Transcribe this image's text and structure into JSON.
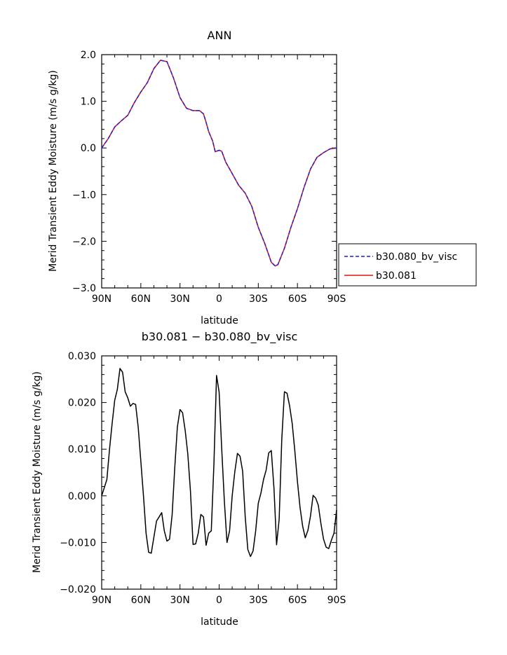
{
  "chart_data": [
    {
      "type": "line",
      "title": "ANN",
      "xlabel": "latitude",
      "ylabel": "Merid Transient Eddy Moisture (m/s g/kg)",
      "xlim": [
        90,
        -90
      ],
      "ylim": [
        -3.0,
        2.0
      ],
      "x_ticks": [
        90,
        60,
        30,
        0,
        -30,
        -60,
        -90
      ],
      "x_tick_labels": [
        "90N",
        "60N",
        "30N",
        "0",
        "30S",
        "60S",
        "90S"
      ],
      "y_ticks": [
        -3.0,
        -2.0,
        -1.0,
        0.0,
        1.0,
        2.0
      ],
      "y_tick_labels": [
        "−3.0",
        "−2.0",
        "−1.0",
        "0.0",
        "1.0",
        "2.0"
      ],
      "legend_position": "right",
      "series": [
        {
          "name": "b30.080_bv_visc",
          "color": "#1f1fcf",
          "style": "dashed",
          "x": [
            90,
            85,
            80,
            75,
            70,
            65,
            60,
            55,
            50,
            45,
            40,
            35,
            30,
            25,
            20,
            15,
            12,
            10,
            8,
            5,
            3,
            0,
            -2,
            -5,
            -10,
            -15,
            -20,
            -25,
            -30,
            -35,
            -40,
            -43,
            -45,
            -50,
            -55,
            -60,
            -65,
            -70,
            -75,
            -80,
            -85,
            -90
          ],
          "y": [
            0.0,
            0.2,
            0.45,
            0.58,
            0.7,
            0.97,
            1.2,
            1.4,
            1.7,
            1.88,
            1.85,
            1.5,
            1.08,
            0.85,
            0.8,
            0.8,
            0.73,
            0.55,
            0.35,
            0.15,
            -0.08,
            -0.05,
            -0.07,
            -0.3,
            -0.55,
            -0.8,
            -0.97,
            -1.25,
            -1.7,
            -2.05,
            -2.45,
            -2.53,
            -2.5,
            -2.15,
            -1.7,
            -1.3,
            -0.85,
            -0.45,
            -0.2,
            -0.1,
            -0.02,
            0.0
          ]
        },
        {
          "name": "b30.081",
          "color": "#e01010",
          "style": "solid",
          "x": [
            90,
            85,
            80,
            75,
            70,
            65,
            60,
            55,
            50,
            45,
            40,
            35,
            30,
            25,
            20,
            15,
            12,
            10,
            8,
            5,
            3,
            0,
            -2,
            -5,
            -10,
            -15,
            -20,
            -25,
            -30,
            -35,
            -40,
            -43,
            -45,
            -50,
            -55,
            -60,
            -65,
            -70,
            -75,
            -80,
            -85,
            -90
          ],
          "y": [
            0.0,
            0.2,
            0.45,
            0.58,
            0.7,
            0.97,
            1.2,
            1.4,
            1.7,
            1.88,
            1.85,
            1.5,
            1.08,
            0.85,
            0.8,
            0.8,
            0.73,
            0.55,
            0.35,
            0.15,
            -0.08,
            -0.05,
            -0.07,
            -0.3,
            -0.55,
            -0.8,
            -0.97,
            -1.25,
            -1.7,
            -2.05,
            -2.45,
            -2.53,
            -2.5,
            -2.15,
            -1.7,
            -1.3,
            -0.85,
            -0.45,
            -0.2,
            -0.1,
            -0.02,
            0.0
          ]
        }
      ]
    },
    {
      "type": "line",
      "title": "b30.081 − b30.080_bv_visc",
      "xlabel": "latitude",
      "ylabel": "Merid Transient Eddy Moisture (m/s g/kg)",
      "xlim": [
        90,
        -90
      ],
      "ylim": [
        -0.02,
        0.03
      ],
      "x_ticks": [
        90,
        60,
        30,
        0,
        -30,
        -60,
        -90
      ],
      "x_tick_labels": [
        "90N",
        "60N",
        "30N",
        "0",
        "30S",
        "60S",
        "90S"
      ],
      "y_ticks": [
        -0.02,
        -0.01,
        0.0,
        0.01,
        0.02,
        0.03
      ],
      "y_tick_labels": [
        "−0.020",
        "−0.010",
        "0.000",
        "0.010",
        "0.020",
        "0.030"
      ],
      "series": [
        {
          "color": "#000000",
          "style": "solid",
          "x": [
            90,
            86,
            84,
            82,
            80,
            78,
            76,
            74,
            72,
            70,
            68,
            66,
            64,
            62,
            60,
            58,
            56,
            54,
            52,
            48,
            46,
            44,
            42,
            40,
            38,
            36,
            34,
            32,
            30,
            28,
            26,
            24,
            22,
            20,
            18,
            16,
            14,
            12,
            10,
            8,
            6,
            4,
            2,
            0,
            -2,
            -4,
            -6,
            -8,
            -10,
            -12,
            -14,
            -16,
            -18,
            -20,
            -22,
            -24,
            -26,
            -28,
            -30,
            -32,
            -34,
            -36,
            -38,
            -40,
            -42,
            -44,
            -46,
            -48,
            -50,
            -52,
            -54,
            -56,
            -58,
            -60,
            -62,
            -64,
            -66,
            -68,
            -70,
            -72,
            -74,
            -76,
            -78,
            -80,
            -82,
            -84,
            -86,
            -88,
            -90
          ],
          "y": [
            0.0,
            0.0035,
            0.01,
            0.0155,
            0.0205,
            0.0228,
            0.0273,
            0.0265,
            0.0223,
            0.021,
            0.0192,
            0.0198,
            0.0196,
            0.0147,
            0.0075,
            0.0,
            -0.008,
            -0.0121,
            -0.0123,
            -0.0054,
            -0.0045,
            -0.0036,
            -0.0075,
            -0.0097,
            -0.0093,
            -0.004,
            0.006,
            0.0147,
            0.0185,
            0.0178,
            0.014,
            0.009,
            0.001,
            -0.0104,
            -0.0103,
            -0.008,
            -0.004,
            -0.0045,
            -0.0106,
            -0.008,
            -0.0075,
            0.007,
            0.0258,
            0.0222,
            0.01,
            -0.001,
            -0.01,
            -0.0075,
            0.0,
            0.0051,
            0.0091,
            0.0085,
            0.0053,
            -0.0045,
            -0.0115,
            -0.013,
            -0.0118,
            -0.0075,
            -0.0016,
            0.0006,
            0.0035,
            0.0055,
            0.0092,
            0.0097,
            0.0016,
            -0.0105,
            -0.005,
            0.012,
            0.0223,
            0.022,
            0.0193,
            0.0155,
            0.0097,
            0.003,
            -0.0025,
            -0.0065,
            -0.009,
            -0.0074,
            -0.0043,
            0.0001,
            -0.0005,
            -0.002,
            -0.006,
            -0.0093,
            -0.011,
            -0.0113,
            -0.0095,
            -0.008,
            -0.003
          ]
        }
      ]
    }
  ]
}
